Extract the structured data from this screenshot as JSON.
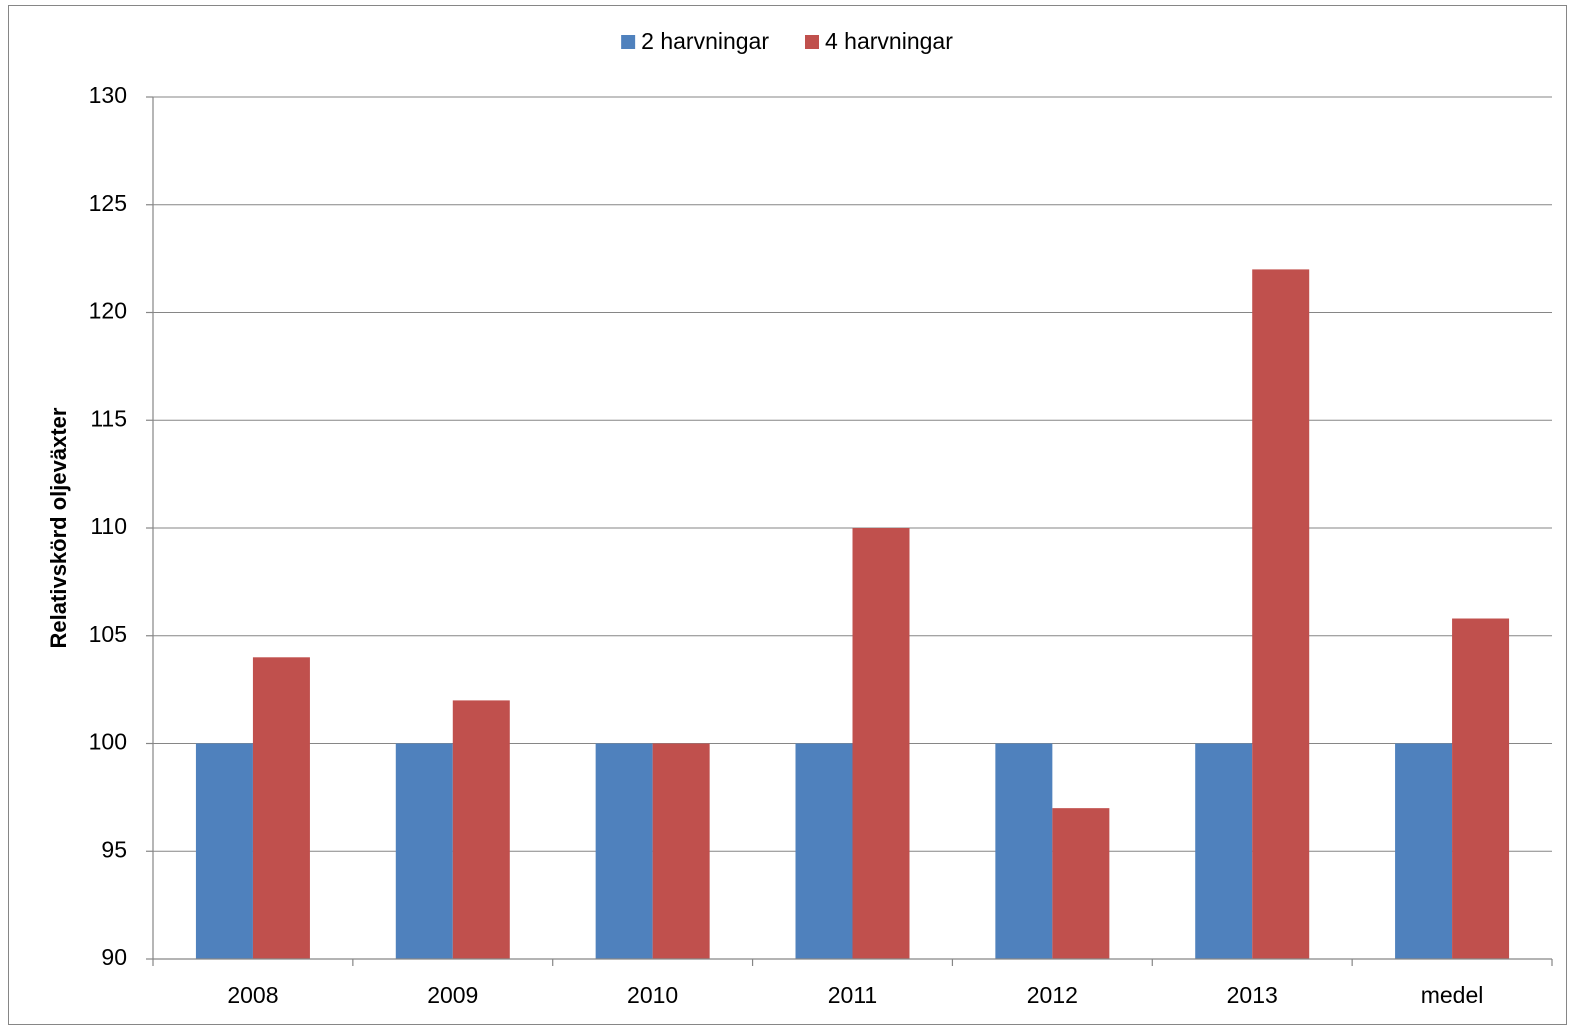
{
  "chart_data": {
    "type": "bar",
    "y_label": "Relativskörd oljeväxter",
    "categories": [
      "2008",
      "2009",
      "2010",
      "2011",
      "2012",
      "2013",
      "medel"
    ],
    "series": [
      {
        "name": "2 harvningar",
        "color": "#4f81bd",
        "values": [
          100,
          100,
          100,
          100,
          100,
          100,
          100
        ]
      },
      {
        "name": "4 harvningar",
        "color": "#c0504d",
        "values": [
          104,
          102,
          100,
          110,
          97,
          122,
          105.8
        ]
      }
    ],
    "ylim": [
      90,
      130
    ],
    "yticks": [
      90,
      95,
      100,
      105,
      110,
      115,
      120,
      125,
      130
    ],
    "grid": true,
    "legend": "top"
  }
}
